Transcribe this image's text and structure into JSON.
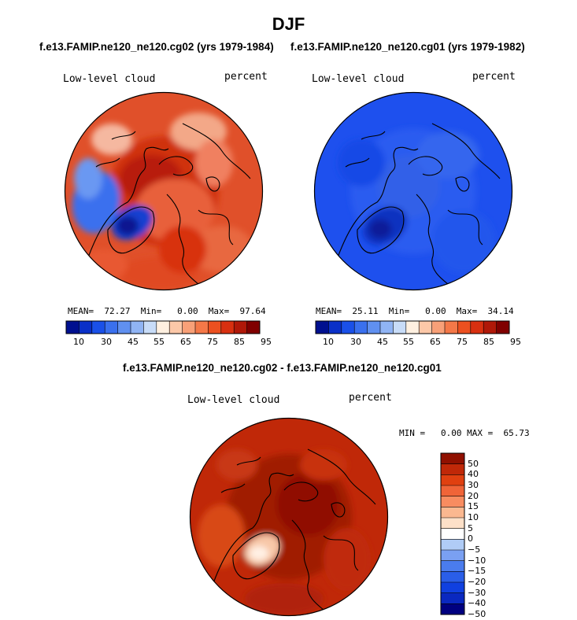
{
  "page": {
    "title": "DJF",
    "subtitle_left": "f.e13.FAMIP.ne120_ne120.cg02 (yrs 1979-1984)",
    "subtitle_right": "f.e13.FAMIP.ne120_ne120.cg01 (yrs 1979-1982)",
    "diff_title": "f.e13.FAMIP.ne120_ne120.cg02 - f.e13.FAMIP.ne120_ne120.cg01"
  },
  "panels": {
    "left": {
      "label": "Low-level cloud",
      "units": "percent",
      "stats": "MEAN=  72.27  Min=   0.00  Max=  97.64"
    },
    "right": {
      "label": "Low-level cloud",
      "units": "percent",
      "stats": "MEAN=  25.11  Min=   0.00  Max=  34.14"
    },
    "diff": {
      "label": "Low-level cloud",
      "units": "percent",
      "stats": "MIN =   0.00 MAX =  65.73"
    }
  },
  "colors": {
    "abs_scale": [
      "#00108f",
      "#0a30c8",
      "#1a50e8",
      "#3a70ee",
      "#6090f0",
      "#90b4f4",
      "#c8dcf8",
      "#fff0e0",
      "#fcc8a8",
      "#f8a078",
      "#f47848",
      "#ec5020",
      "#d83010",
      "#b01808",
      "#800000"
    ],
    "diff_scale": [
      "#000080",
      "#0a28c0",
      "#1040e0",
      "#2a5ee8",
      "#4a7cee",
      "#7aa0f2",
      "#b0ccf6",
      "#ffffff",
      "#fde0c8",
      "#fbb890",
      "#f88c60",
      "#f06438",
      "#e04010",
      "#c02808",
      "#901000"
    ]
  },
  "chart_data": [
    {
      "type": "heatmap",
      "name": "cg02 DJF low-level cloud (polar stereographic)",
      "title": "Low-level cloud",
      "units": "percent",
      "colorbar_ticks": [
        "10",
        "30",
        "45",
        "55",
        "65",
        "75",
        "85",
        "95"
      ],
      "mean": 72.27,
      "min": 0.0,
      "max": 97.64
    },
    {
      "type": "heatmap",
      "name": "cg01 DJF low-level cloud (polar stereographic)",
      "title": "Low-level cloud",
      "units": "percent",
      "colorbar_ticks": [
        "10",
        "30",
        "45",
        "55",
        "65",
        "75",
        "85",
        "95"
      ],
      "mean": 25.11,
      "min": 0.0,
      "max": 34.14
    },
    {
      "type": "heatmap",
      "name": "difference cg02 - cg01",
      "title": "Low-level cloud",
      "units": "percent",
      "colorbar_ticks": [
        "50",
        "40",
        "30",
        "20",
        "15",
        "10",
        "5",
        "0",
        "−5",
        "−10",
        "−15",
        "−20",
        "−30",
        "−40",
        "−50"
      ],
      "min": 0.0,
      "max": 65.73
    }
  ]
}
